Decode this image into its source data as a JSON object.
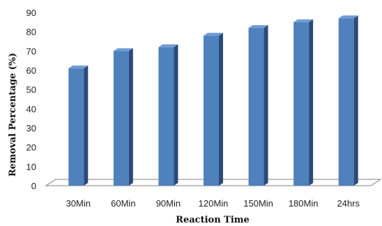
{
  "chart_data": {
    "type": "bar",
    "title": "",
    "xlabel": "Reaction Time",
    "ylabel": "Removal Percentage (%)",
    "categories": [
      "30Min",
      "60Min",
      "90Min",
      "120Min",
      "150Min",
      "180Min",
      "24hrs"
    ],
    "values": [
      61,
      70,
      72,
      78,
      82,
      85,
      87
    ],
    "ylim": [
      0,
      90
    ],
    "yticks": [
      0,
      10,
      20,
      30,
      40,
      50,
      60,
      70,
      80,
      90
    ],
    "grid": false,
    "legend": "none",
    "bar_style": "3d",
    "colors": {
      "bar_front": "#4f81bd",
      "bar_side": "#2c4a78",
      "bar_top": "#6f9bd6",
      "floor": "#7f7f7f"
    }
  }
}
